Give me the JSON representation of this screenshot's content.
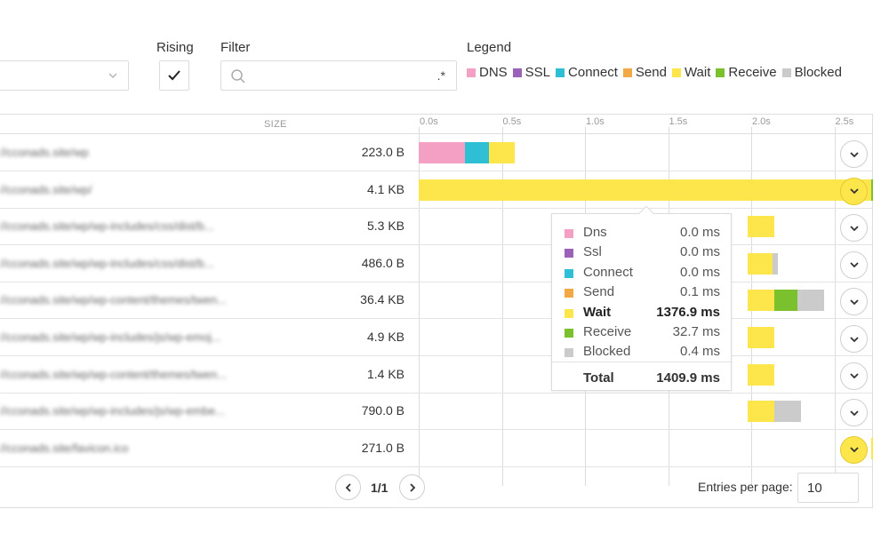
{
  "controls": {
    "select_value": "",
    "rising_label": "Rising",
    "rising_checked": true,
    "filter_label": "Filter",
    "filter_value": "",
    "filter_regex_label": ".*"
  },
  "legend": {
    "title": "Legend",
    "items": [
      {
        "label": "DNS",
        "color": "#f49fc4"
      },
      {
        "label": "SSL",
        "color": "#9b63b8"
      },
      {
        "label": "Connect",
        "color": "#2fbfd4"
      },
      {
        "label": "Send",
        "color": "#f2a945"
      },
      {
        "label": "Wait",
        "color": "#fde64b"
      },
      {
        "label": "Receive",
        "color": "#7bc12d"
      },
      {
        "label": "Blocked",
        "color": "#cbcbcb"
      }
    ]
  },
  "table": {
    "size_header": "SIZE",
    "ticks": [
      "0.0s",
      "0.5s",
      "1.0s",
      "1.5s",
      "2.0s",
      "2.5s"
    ],
    "rows": [
      {
        "url": "//cconads.site/wp",
        "size": "223.0 B",
        "timing_s": [
          {
            "phase": "DNS",
            "start": 0.0,
            "end": 0.28
          },
          {
            "phase": "Connect",
            "start": 0.28,
            "end": 0.42
          },
          {
            "phase": "Wait",
            "start": 0.42,
            "end": 0.58
          }
        ],
        "active": false
      },
      {
        "url": "//cconads.site/wp/",
        "size": "4.1 KB",
        "timing_s": [
          {
            "phase": "Wait",
            "start": 0.0,
            "end": 2.72
          },
          {
            "phase": "Receive",
            "start": 2.72,
            "end": 2.8
          }
        ],
        "active": true
      },
      {
        "url": "//cconads.site/wp/wp-includes/css/dist/b...",
        "size": "5.3 KB",
        "timing_s": [
          {
            "phase": "Wait",
            "start": 1.98,
            "end": 2.14
          }
        ],
        "active": false
      },
      {
        "url": "//cconads.site/wp/wp-includes/css/dist/b...",
        "size": "486.0 B",
        "timing_s": [
          {
            "phase": "Wait",
            "start": 1.98,
            "end": 2.13
          },
          {
            "phase": "Blocked",
            "start": 2.13,
            "end": 2.16
          }
        ],
        "active": false
      },
      {
        "url": "//cconads.site/wp/wp-content/themes/twen...",
        "size": "36.4 KB",
        "timing_s": [
          {
            "phase": "Wait",
            "start": 1.98,
            "end": 2.14
          },
          {
            "phase": "Receive",
            "start": 2.14,
            "end": 2.28
          },
          {
            "phase": "Blocked",
            "start": 2.28,
            "end": 2.44
          }
        ],
        "active": false
      },
      {
        "url": "//cconads.site/wp/wp-includes/js/wp-emoj...",
        "size": "4.9 KB",
        "timing_s": [
          {
            "phase": "Wait",
            "start": 1.98,
            "end": 2.14
          }
        ],
        "active": false
      },
      {
        "url": "//cconads.site/wp/wp-content/themes/twen...",
        "size": "1.4 KB",
        "timing_s": [
          {
            "phase": "Wait",
            "start": 1.98,
            "end": 2.14
          }
        ],
        "active": false
      },
      {
        "url": "//cconads.site/wp/wp-includes/js/wp-embe...",
        "size": "790.0 B",
        "timing_s": [
          {
            "phase": "Wait",
            "start": 1.98,
            "end": 2.14
          },
          {
            "phase": "Blocked",
            "start": 2.14,
            "end": 2.3
          }
        ],
        "active": false
      },
      {
        "url": "//cconads.site/favicon.ico",
        "size": "271.0 B",
        "timing_s": [
          {
            "phase": "Wait",
            "start": 2.72,
            "end": 2.8
          }
        ],
        "active": true
      }
    ]
  },
  "tooltip": {
    "rows": [
      {
        "name": "Dns",
        "value": "0.0 ms",
        "color": "#f49fc4",
        "bold": false
      },
      {
        "name": "Ssl",
        "value": "0.0 ms",
        "color": "#9b63b8",
        "bold": false
      },
      {
        "name": "Connect",
        "value": "0.0 ms",
        "color": "#2fbfd4",
        "bold": false
      },
      {
        "name": "Send",
        "value": "0.1 ms",
        "color": "#f2a945",
        "bold": false
      },
      {
        "name": "Wait",
        "value": "1376.9 ms",
        "color": "#fde64b",
        "bold": true
      },
      {
        "name": "Receive",
        "value": "32.7 ms",
        "color": "#7bc12d",
        "bold": false
      },
      {
        "name": "Blocked",
        "value": "0.4 ms",
        "color": "#cbcbcb",
        "bold": false
      }
    ],
    "total_label": "Total",
    "total_value": "1409.9 ms"
  },
  "pagination": {
    "page_text": "1/1",
    "entries_label": "Entries per page:",
    "entries_value": "10"
  }
}
